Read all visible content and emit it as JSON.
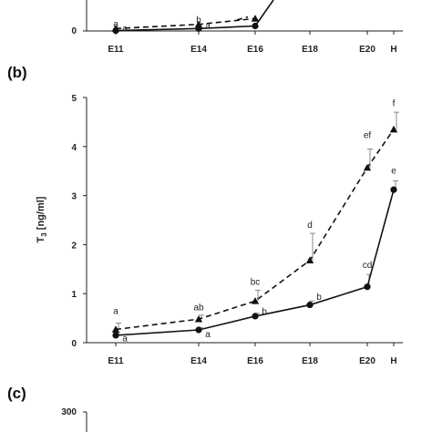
{
  "chart_data": [
    {
      "panel_label": "",
      "type": "line",
      "categories": [
        "E11",
        "E14",
        "E16",
        "E18",
        "E20",
        "H"
      ],
      "ylim": [
        0,
        1
      ],
      "y_ticks": [
        "0"
      ],
      "series": [
        {
          "style": "dashed-triangle",
          "values": [
            0.12,
            0.33,
            0.62,
            null,
            null,
            null
          ]
        },
        {
          "style": "solid-circle",
          "values": [
            0.02,
            0.12,
            0.25,
            null,
            null,
            null
          ]
        }
      ],
      "annotations": [
        {
          "text": "a",
          "category": "E11",
          "y": 0.33
        },
        {
          "text": "a",
          "category": "E11",
          "y": 0.12
        },
        {
          "text": "b",
          "category": "E14",
          "y": 0.55
        },
        {
          "text": "a",
          "category": "E14",
          "y": 0.25
        }
      ]
    },
    {
      "panel_label": "(b)",
      "type": "line",
      "categories": [
        "E11",
        "E14",
        "E16",
        "E18",
        "E20",
        "H"
      ],
      "ylabel_main": "T",
      "ylabel_sub": "3",
      "ylabel_rest": " [ng/ml]",
      "ylim": [
        0,
        5
      ],
      "y_ticks": [
        "0",
        "1",
        "2",
        "3",
        "4",
        "5"
      ],
      "grid": false,
      "series": [
        {
          "style": "dashed-triangle",
          "values": [
            0.27,
            0.48,
            0.85,
            1.68,
            3.57,
            4.35
          ],
          "errors": [
            0.13,
            0.08,
            0.22,
            0.55,
            0.38,
            0.35
          ]
        },
        {
          "style": "solid-circle",
          "values": [
            0.15,
            0.26,
            0.54,
            0.77,
            1.14,
            3.12
          ],
          "errors": [
            0.05,
            0.05,
            0.06,
            0.08,
            0.25,
            0.18
          ]
        }
      ],
      "annotations": [
        {
          "text": "a",
          "category": "E11",
          "y": 0.64
        },
        {
          "text": "a",
          "category": "E11",
          "y": 0.08
        },
        {
          "text": "ab",
          "category": "E14",
          "y": 0.72
        },
        {
          "text": "a",
          "category": "E14",
          "y": 0.17
        },
        {
          "text": "bc",
          "category": "E16",
          "y": 1.24
        },
        {
          "text": "b",
          "category": "E16",
          "y": 0.63
        },
        {
          "text": "d",
          "category": "E18",
          "y": 2.4
        },
        {
          "text": "b",
          "category": "E18",
          "y": 0.93
        },
        {
          "text": "ef",
          "category": "E20",
          "y": 4.23
        },
        {
          "text": "cd",
          "category": "E20",
          "y": 1.58
        },
        {
          "text": "f",
          "category": "H",
          "y": 4.88
        },
        {
          "text": "e",
          "category": "H",
          "y": 3.5
        }
      ]
    },
    {
      "panel_label": "(c)",
      "type": "line",
      "categories": [],
      "y_ticks": [
        "300"
      ],
      "series": []
    }
  ]
}
